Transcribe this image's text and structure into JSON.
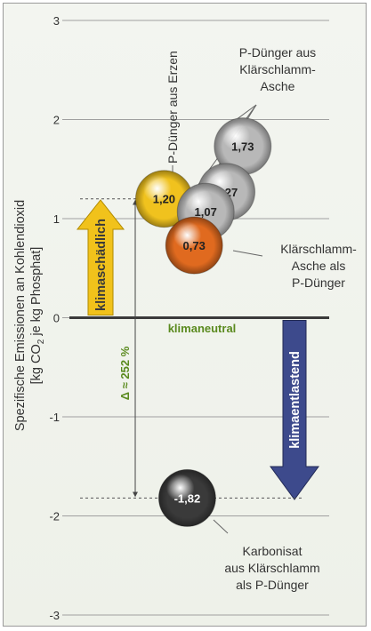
{
  "chart_data": {
    "type": "scatter",
    "ylabel_line1": "Spezifische Emissionen an Kohlendioxid",
    "ylabel_line2_prefix": "[kg CO",
    "ylabel_line2_sub": "2",
    "ylabel_line2_suffix": " je kg Phosphat]",
    "ylim": [
      -3,
      3
    ],
    "yticks": [
      -3,
      -2,
      -1,
      0,
      1,
      2,
      3
    ],
    "ytick_labels": [
      "-3",
      "-2",
      "-1",
      "0",
      "1",
      "2",
      "3"
    ],
    "grid": true,
    "points": [
      {
        "label": "1,20",
        "value": 1.2,
        "x": 2.2,
        "color": "#f0c21e",
        "group": "erz"
      },
      {
        "label": "0,73",
        "value": 0.73,
        "x": 2.85,
        "color": "#e06a1f",
        "group": "ka_direkt"
      },
      {
        "label": "1,07",
        "value": 1.07,
        "x": 3.1,
        "color": "#b8b8b8",
        "group": "ka"
      },
      {
        "label": "1,27",
        "value": 1.27,
        "x": 3.55,
        "color": "#b8b8b8",
        "group": "ka"
      },
      {
        "label": "1,73",
        "value": 1.73,
        "x": 3.9,
        "color": "#b8b8b8",
        "group": "ka"
      },
      {
        "label": "-1,82",
        "value": -1.82,
        "x": 2.7,
        "color": "#3a3a3a",
        "group": "karbonisat"
      }
    ],
    "annotations": {
      "erz": "P-Dünger aus Erzen",
      "ka_lines": [
        "P-Dünger aus",
        "Klärschlamm-",
        "Asche"
      ],
      "ka_direkt_lines": [
        "Klärschlamm-",
        "Asche als",
        "P-Dünger"
      ],
      "karbonisat_lines": [
        "Karbonisat",
        "aus Klärschlamm",
        "als P-Dünger"
      ],
      "klimaneutral": "klimaneutral",
      "klimaschaedlich": "klimaschädlich",
      "klimaentlastend": "klimaentlastend",
      "delta": "Δ ≈ 252 %"
    }
  },
  "colors": {
    "grid": "#a0a0a0",
    "zero_line": "#3a3a3a",
    "up_arrow": "#f1c21b",
    "down_arrow": "#3d4a8c",
    "neutral_text": "#5a8a1e",
    "delta_text": "#5a8a1e"
  }
}
